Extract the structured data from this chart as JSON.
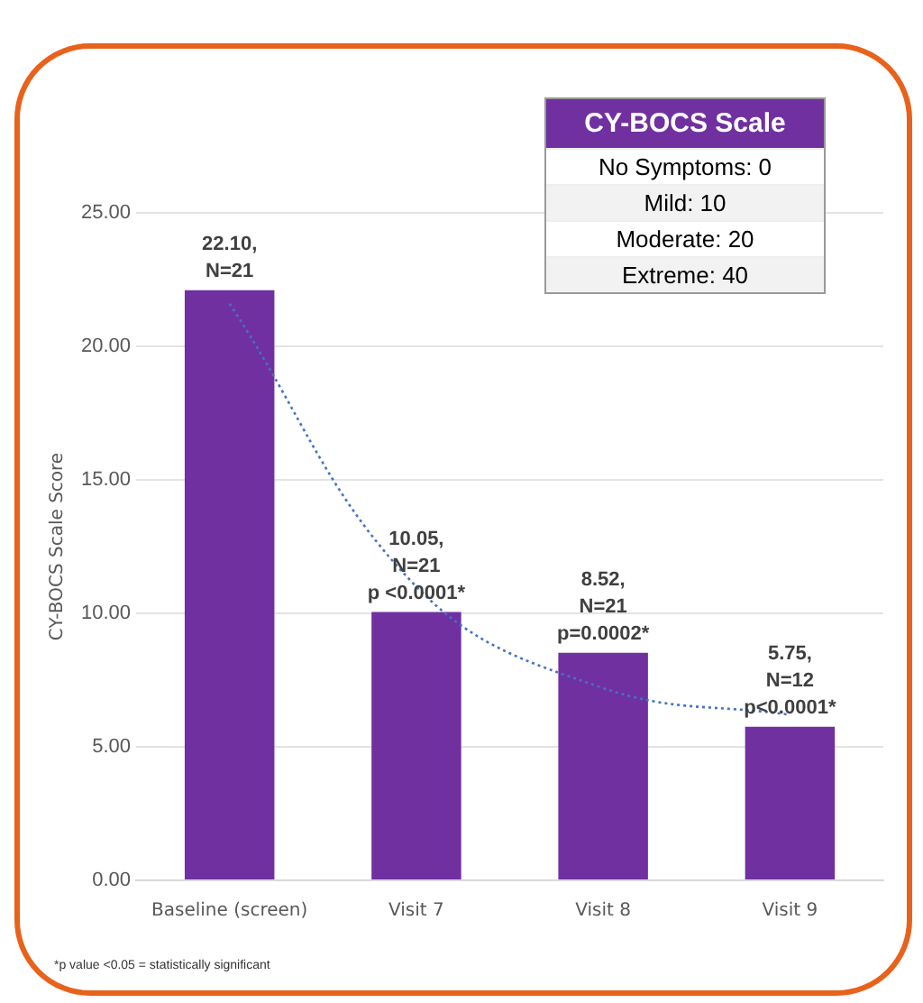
{
  "chart_data": {
    "type": "bar",
    "ylabel": "CY-BOCS Scale Score",
    "categories": [
      "Baseline (screen)",
      "Visit 7",
      "Visit 8",
      "Visit 9"
    ],
    "series": [
      {
        "color": "#7030a0",
        "values": [
          22.1,
          10.05,
          8.52,
          5.75
        ],
        "value_labels": [
          "22.10,\nN=21",
          "10.05,\nN=21\np <0.0001*",
          "8.52,\nN=21\np=0.0002*",
          "5.75,\nN=12\np<0.0001*"
        ]
      },
      {
        "type": "line",
        "color": "#4472c4",
        "line_style": "dotted",
        "marker": "none",
        "values": [
          21.6,
          11.0,
          7.2,
          6.2
        ]
      }
    ],
    "ylim": [
      0,
      25
    ],
    "yticks": [
      {
        "value": 0,
        "label": "0.00"
      },
      {
        "value": 5,
        "label": "5.00"
      },
      {
        "value": 10,
        "label": "10.00"
      },
      {
        "value": 15,
        "label": "15.00"
      },
      {
        "value": 20,
        "label": "20.00"
      },
      {
        "value": 25,
        "label": "25.00"
      }
    ],
    "grid": "y",
    "annotations": [
      "CY-BOCS Scale",
      "No Symptoms: 0",
      "Mild: 10",
      "Moderate: 20",
      "Extreme: 40",
      "*p value <0.05 = statistically significant"
    ]
  }
}
